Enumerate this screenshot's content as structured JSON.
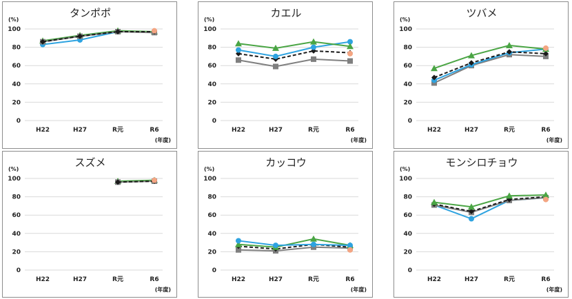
{
  "colors": {
    "blue": "#2ea3e0",
    "green": "#4aa544",
    "black": "#1a1a1a",
    "gray": "#7f7f7f",
    "peach": "#f4a582",
    "grid": "#d9d9d9"
  },
  "chart_data": [
    {
      "type": "line",
      "title": "タンポポ",
      "ylabel": "(%)",
      "xlabel": "(年度)",
      "categories": [
        "H22",
        "H27",
        "R元",
        "R6"
      ],
      "yticks": [
        "0",
        "20",
        "40",
        "60",
        "80",
        "100"
      ],
      "ylim": [
        0,
        100
      ],
      "grid": true,
      "series": [
        {
          "color": "blue",
          "marker": "circle",
          "dashed": false,
          "values": [
            83,
            88,
            97,
            97
          ]
        },
        {
          "color": "green",
          "marker": "triangle",
          "dashed": false,
          "values": [
            87,
            93,
            98,
            97
          ]
        },
        {
          "color": "gray",
          "marker": "square",
          "dashed": false,
          "values": [
            86,
            92,
            97,
            96
          ]
        },
        {
          "color": "black",
          "marker": "diamond",
          "dashed": true,
          "values": [
            86,
            92,
            97,
            97
          ]
        },
        {
          "color": "peach",
          "marker": "circle",
          "dashed": false,
          "values": [
            null,
            null,
            null,
            98
          ]
        }
      ]
    },
    {
      "type": "line",
      "title": "カエル",
      "ylabel": "(%)",
      "xlabel": "(年度)",
      "categories": [
        "H22",
        "H27",
        "R元",
        "R6"
      ],
      "yticks": [
        "0",
        "20",
        "40",
        "60",
        "80",
        "100"
      ],
      "ylim": [
        0,
        100
      ],
      "grid": true,
      "series": [
        {
          "color": "gray",
          "marker": "square",
          "dashed": false,
          "values": [
            66,
            59,
            67,
            65
          ]
        },
        {
          "color": "black",
          "marker": "diamond",
          "dashed": true,
          "values": [
            73,
            67,
            76,
            74
          ]
        },
        {
          "color": "blue",
          "marker": "circle",
          "dashed": false,
          "values": [
            77,
            70,
            80,
            86
          ]
        },
        {
          "color": "green",
          "marker": "triangle",
          "dashed": false,
          "values": [
            84,
            79,
            86,
            81
          ]
        },
        {
          "color": "peach",
          "marker": "circle",
          "dashed": false,
          "values": [
            null,
            null,
            null,
            73
          ]
        }
      ]
    },
    {
      "type": "line",
      "title": "ツバメ",
      "ylabel": "(%)",
      "xlabel": "(年度)",
      "categories": [
        "H22",
        "H27",
        "R元",
        "R6"
      ],
      "yticks": [
        "0",
        "20",
        "40",
        "60",
        "80",
        "100"
      ],
      "ylim": [
        0,
        100
      ],
      "grid": true,
      "series": [
        {
          "color": "gray",
          "marker": "square",
          "dashed": false,
          "values": [
            41,
            60,
            72,
            70
          ]
        },
        {
          "color": "blue",
          "marker": "circle",
          "dashed": false,
          "values": [
            44,
            61,
            74,
            78
          ]
        },
        {
          "color": "black",
          "marker": "diamond",
          "dashed": true,
          "values": [
            47,
            63,
            75,
            73
          ]
        },
        {
          "color": "green",
          "marker": "triangle",
          "dashed": false,
          "values": [
            57,
            71,
            82,
            78
          ]
        },
        {
          "color": "peach",
          "marker": "circle",
          "dashed": false,
          "values": [
            null,
            null,
            null,
            79
          ]
        }
      ]
    },
    {
      "type": "line",
      "title": "スズメ",
      "ylabel": "(%)",
      "xlabel": "(年度)",
      "categories": [
        "H22",
        "H27",
        "R元",
        "R6"
      ],
      "yticks": [
        "0",
        "20",
        "40",
        "60",
        "80",
        "100"
      ],
      "ylim": [
        0,
        100
      ],
      "grid": true,
      "series": [
        {
          "color": "blue",
          "marker": "circle",
          "dashed": false,
          "values": [
            null,
            null,
            96,
            98
          ]
        },
        {
          "color": "green",
          "marker": "triangle",
          "dashed": false,
          "values": [
            null,
            null,
            97,
            98
          ]
        },
        {
          "color": "gray",
          "marker": "square",
          "dashed": false,
          "values": [
            null,
            null,
            96,
            97
          ]
        },
        {
          "color": "black",
          "marker": "diamond",
          "dashed": true,
          "values": [
            null,
            null,
            96,
            97
          ]
        },
        {
          "color": "peach",
          "marker": "circle",
          "dashed": false,
          "values": [
            null,
            null,
            null,
            98
          ]
        }
      ]
    },
    {
      "type": "line",
      "title": "カッコウ",
      "ylabel": "(%)",
      "xlabel": "(年度)",
      "categories": [
        "H22",
        "H27",
        "R元",
        "R6"
      ],
      "yticks": [
        "0",
        "20",
        "40",
        "60",
        "80",
        "100"
      ],
      "ylim": [
        0,
        100
      ],
      "grid": true,
      "series": [
        {
          "color": "gray",
          "marker": "square",
          "dashed": false,
          "values": [
            22,
            21,
            25,
            24
          ]
        },
        {
          "color": "black",
          "marker": "diamond",
          "dashed": true,
          "values": [
            26,
            23,
            28,
            25
          ]
        },
        {
          "color": "green",
          "marker": "triangle",
          "dashed": false,
          "values": [
            28,
            25,
            34,
            27
          ]
        },
        {
          "color": "blue",
          "marker": "circle",
          "dashed": false,
          "values": [
            32,
            27,
            28,
            27
          ]
        },
        {
          "color": "peach",
          "marker": "circle",
          "dashed": false,
          "values": [
            null,
            null,
            null,
            22
          ]
        }
      ]
    },
    {
      "type": "line",
      "title": "モンシロチョウ",
      "ylabel": "(%)",
      "xlabel": "(年度)",
      "categories": [
        "H22",
        "H27",
        "R元",
        "R6"
      ],
      "yticks": [
        "0",
        "20",
        "40",
        "60",
        "80",
        "100"
      ],
      "ylim": [
        0,
        100
      ],
      "grid": true,
      "series": [
        {
          "color": "blue",
          "marker": "circle",
          "dashed": false,
          "values": [
            71,
            56,
            76,
            79
          ]
        },
        {
          "color": "gray",
          "marker": "square",
          "dashed": false,
          "values": [
            71,
            63,
            76,
            79
          ]
        },
        {
          "color": "black",
          "marker": "diamond",
          "dashed": true,
          "values": [
            72,
            64,
            77,
            80
          ]
        },
        {
          "color": "green",
          "marker": "triangle",
          "dashed": false,
          "values": [
            74,
            69,
            81,
            82
          ]
        },
        {
          "color": "peach",
          "marker": "circle",
          "dashed": false,
          "values": [
            null,
            null,
            null,
            77
          ]
        }
      ]
    }
  ]
}
